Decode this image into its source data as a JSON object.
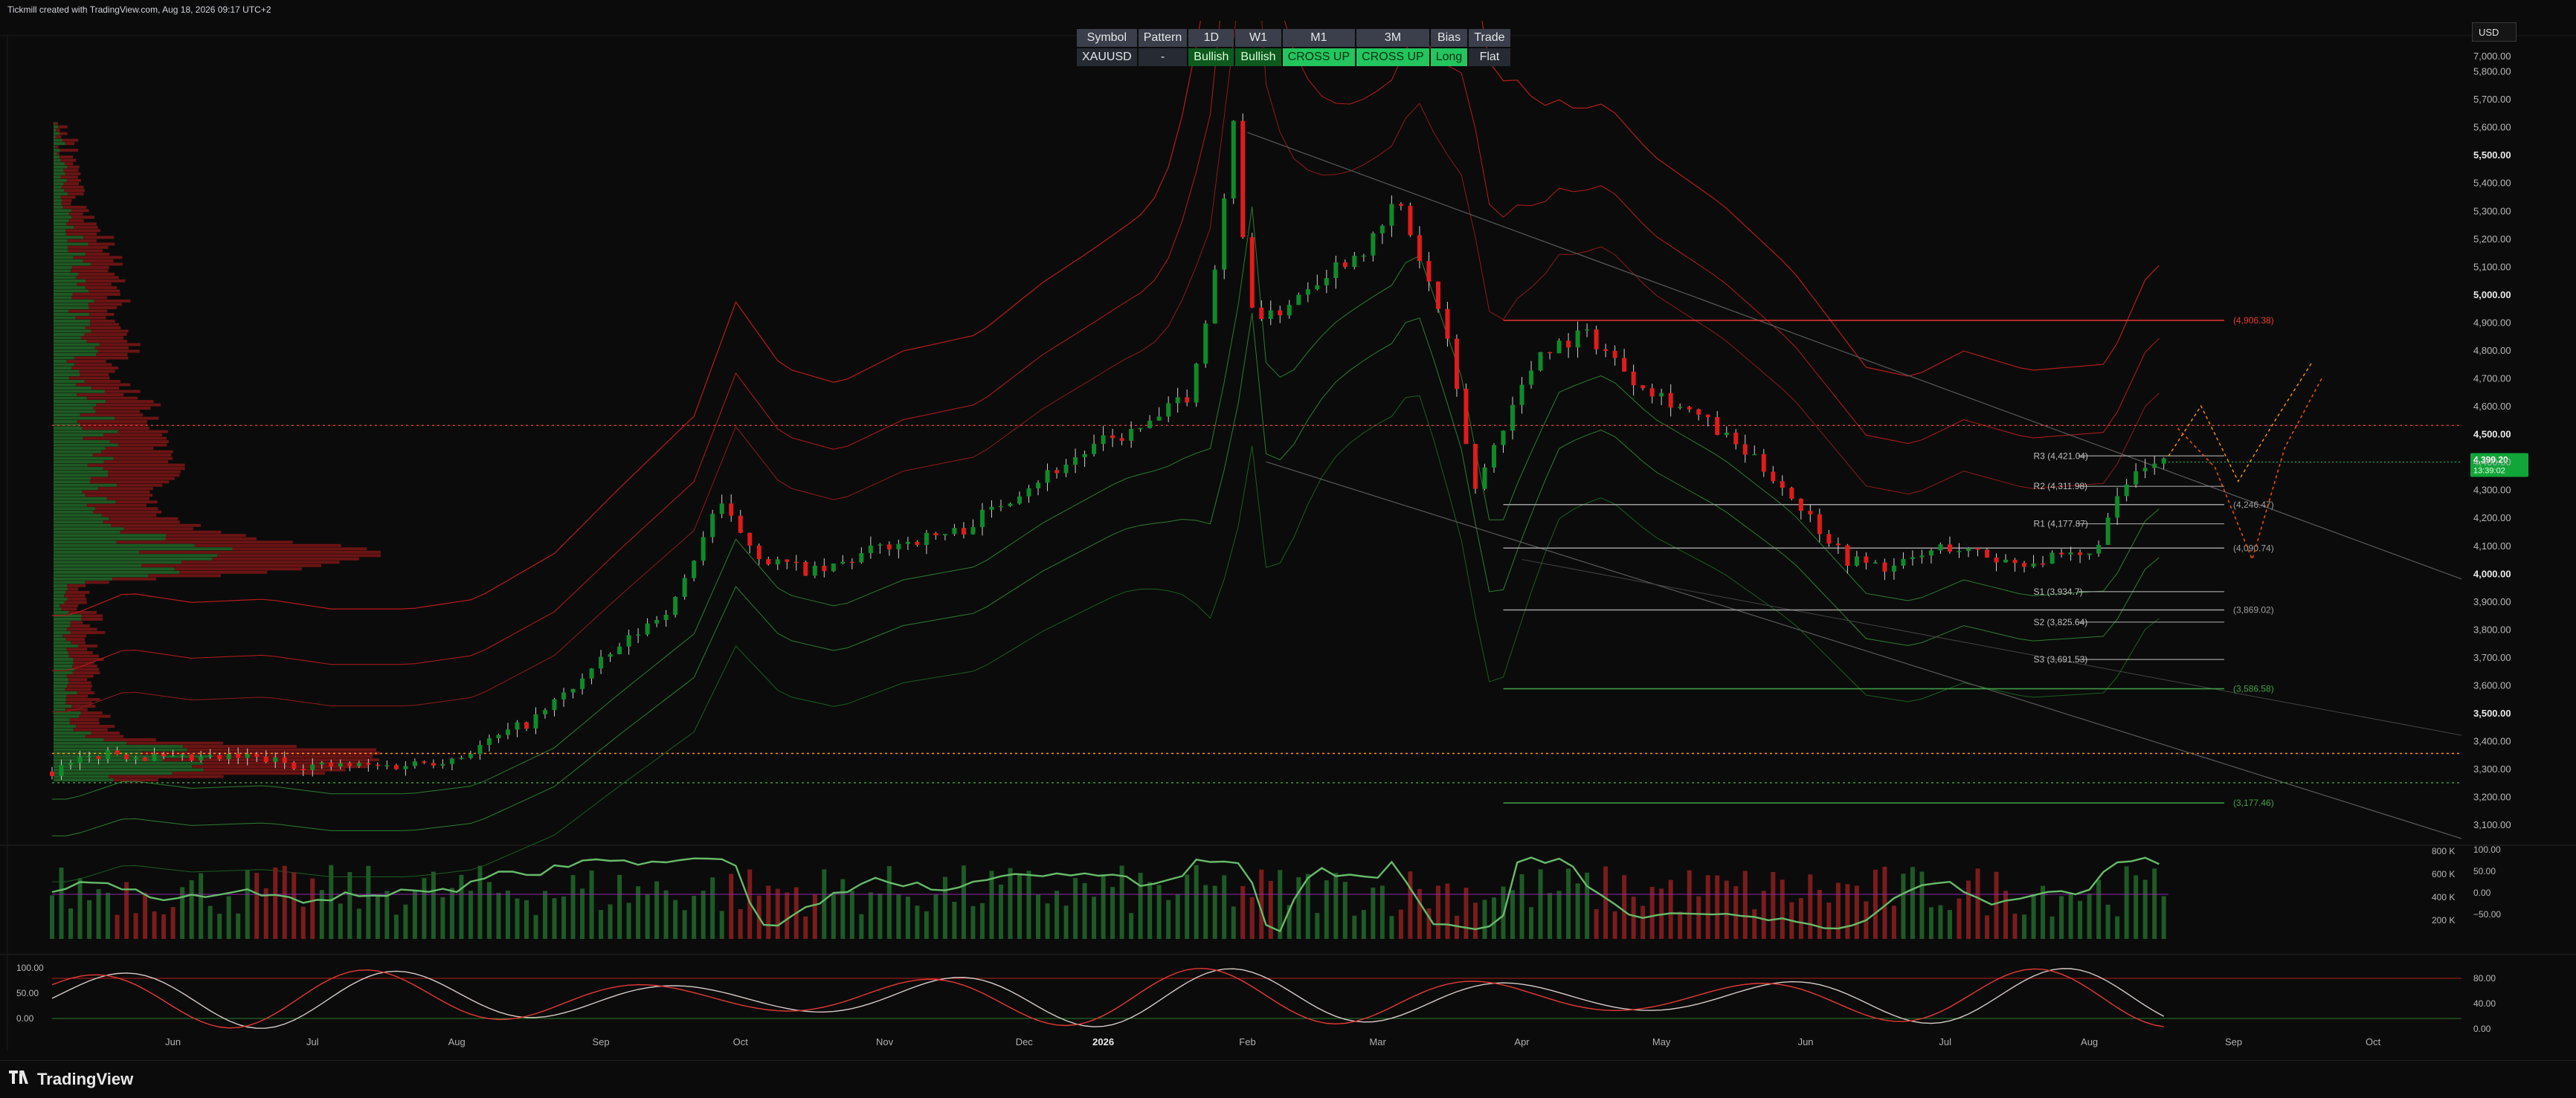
{
  "caption": "Tickmill created with TradingView.com, Aug 18, 2026 09:17 UTC+2",
  "currency": "USD",
  "logo_text": "TradingView",
  "signal_table": {
    "headers": [
      "Symbol",
      "Pattern",
      "1D",
      "W1",
      "M1",
      "3M",
      "Bias",
      "Trade"
    ],
    "values": [
      "XAUUSD",
      "-",
      "Bullish",
      "Bullish",
      "CROSS UP",
      "CROSS UP",
      "Long",
      "Flat"
    ]
  },
  "colors": {
    "bull": "#26a69a",
    "bull_candle": "#0f8a2a",
    "bear_candle": "#e01b1b",
    "band_red": "#b71c1c",
    "band_green": "#2e7d32",
    "accent_green": "#22c55e"
  },
  "chart_data": {
    "type": "line",
    "symbol": "XAUUSD",
    "price_axis": {
      "ticks": [
        3100,
        3200,
        3300,
        3400,
        3500,
        3600,
        3700,
        3800,
        3900,
        4000,
        4100,
        4200,
        4300,
        4400,
        4500,
        4600,
        4700,
        4800,
        4900,
        5000,
        5100,
        5200,
        5300,
        5400,
        5500,
        5600,
        5700,
        5800
      ],
      "labels": [
        "3,100.00",
        "3,200.00",
        "3,300.00",
        "3,400.00",
        "3,500.00",
        "3,600.00",
        "3,700.00",
        "3,800.00",
        "3,900.00",
        "4,000.00",
        "4,100.00",
        "4,200.00",
        "4,300.00",
        "4,400.00",
        "4,500.00",
        "4,600.00",
        "4,700.00",
        "4,800.00",
        "4,900.00",
        "5,000.00",
        "5,100.00",
        "5,200.00",
        "5,300.00",
        "5,400.00",
        "5,500.00",
        "5,600.00",
        "5,700.00",
        "5,800.00"
      ],
      "top_label": "7,000.00",
      "range": [
        3050,
        5900
      ]
    },
    "time_axis": [
      "Jun",
      "Jul",
      "Aug",
      "Sep",
      "Oct",
      "Nov",
      "Dec",
      "2026",
      "Feb",
      "Mar",
      "Apr",
      "May",
      "Jun",
      "Jul",
      "Aug",
      "Sep",
      "Oct"
    ],
    "close_series": {
      "dates": [
        "2025-05-20",
        "2025-06-01",
        "2025-06-15",
        "2025-07-01",
        "2025-07-15",
        "2025-08-01",
        "2025-08-15",
        "2025-09-01",
        "2025-09-15",
        "2025-10-01",
        "2025-10-10",
        "2025-10-20",
        "2025-11-01",
        "2025-11-15",
        "2025-12-01",
        "2025-12-15",
        "2026-01-01",
        "2026-01-10",
        "2026-01-20",
        "2026-01-25",
        "2026-01-29",
        "2026-02-01",
        "2026-02-05",
        "2026-02-15",
        "2026-03-01",
        "2026-03-05",
        "2026-03-15",
        "2026-03-22",
        "2026-03-27",
        "2026-04-05",
        "2026-04-15",
        "2026-04-25",
        "2026-05-10",
        "2026-05-25",
        "2026-06-10",
        "2026-06-20",
        "2026-07-01",
        "2026-07-15",
        "2026-08-01",
        "2026-08-10",
        "2026-08-18"
      ],
      "close": [
        3290,
        3360,
        3330,
        3340,
        3310,
        3310,
        3340,
        3480,
        3680,
        3900,
        4250,
        4050,
        4000,
        4100,
        4150,
        4310,
        4470,
        4520,
        4650,
        5100,
        5600,
        5000,
        4900,
        5050,
        5200,
        5350,
        4900,
        4300,
        4500,
        4800,
        4860,
        4700,
        4550,
        4350,
        4050,
        4020,
        4100,
        4040,
        4060,
        4350,
        4399
      ]
    },
    "last_price": {
      "value": "4,399.20",
      "countdown": "13:39:02"
    },
    "pivot_levels": [
      {
        "label": "R3 (4,421.04)",
        "value": 4421.04
      },
      {
        "label": "R2 (4,311.98)",
        "value": 4311.98
      },
      {
        "label": "R1 (4,177.87)",
        "value": 4177.87
      },
      {
        "label": "S1 (3,934.7)",
        "value": 3934.7
      },
      {
        "label": "S2 (3,825.64)",
        "value": 3825.64
      },
      {
        "label": "S3 (3,691.53)",
        "value": 3691.53
      }
    ],
    "horizontal_levels": [
      {
        "label": "(4,906.38)",
        "value": 4906.38,
        "color": "#e53935"
      },
      {
        "label": "(4,246.47)",
        "value": 4246.47,
        "color": "#9e9e9e"
      },
      {
        "label": "(4,090.74)",
        "value": 4090.74,
        "color": "#9e9e9e"
      },
      {
        "label": "(3,869.02)",
        "value": 3869.02,
        "color": "#9e9e9e"
      },
      {
        "label": "(3,586.58)",
        "value": 3586.58,
        "color": "#43a047"
      },
      {
        "label": "(3,177.46)",
        "value": 3177.46,
        "color": "#43a047"
      }
    ],
    "dotted_levels": [
      {
        "value": 4530,
        "color": "#e53935"
      },
      {
        "value": 3355,
        "color": "#ff9800"
      },
      {
        "value": 3250,
        "color": "#43a047"
      }
    ],
    "volume_panel": {
      "axis_labels": [
        "800 K",
        "600 K",
        "400 K",
        "200 K"
      ],
      "osc_labels": [
        "100.00",
        "50.00",
        "0.00",
        "−50.00"
      ]
    },
    "stoch_panel": {
      "left_labels": [
        "100.00",
        "50.00",
        "0.00"
      ],
      "right_labels": [
        "80.00",
        "40.00",
        "0.00"
      ]
    }
  }
}
